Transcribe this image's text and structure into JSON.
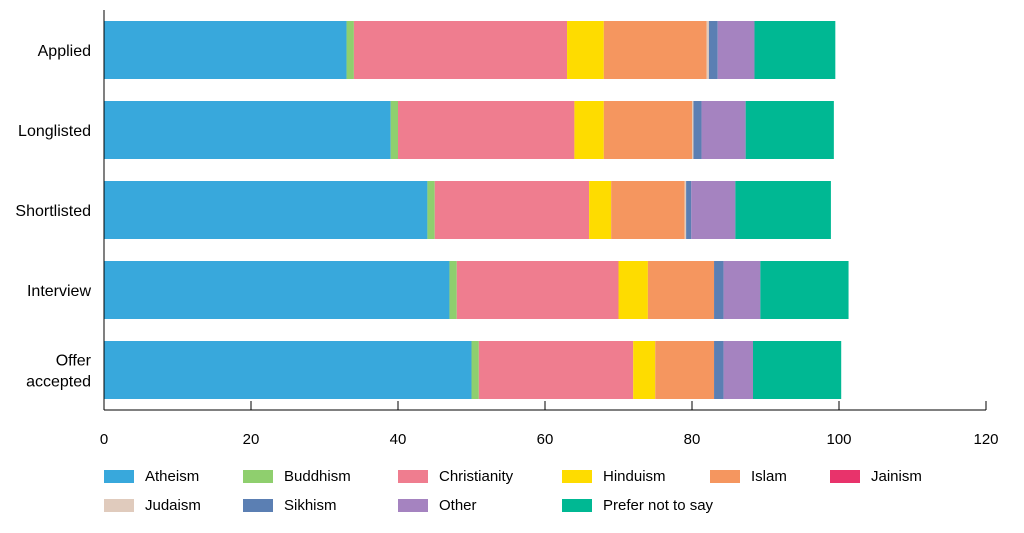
{
  "chart_data": {
    "type": "bar",
    "orientation": "horizontal",
    "stacked": true,
    "title": "",
    "xlabel": "",
    "ylabel": "",
    "xlim": [
      0,
      120
    ],
    "xticks": [
      "0",
      "20",
      "40",
      "60",
      "80",
      "100",
      "120"
    ],
    "categories": [
      "Applied",
      "Longlisted",
      "Shortlisted",
      "Interview",
      "Offer accepted"
    ],
    "category_lines": [
      [
        "Applied"
      ],
      [
        "Longlisted"
      ],
      [
        "Shortlisted"
      ],
      [
        "Interview"
      ],
      [
        "Offer",
        "accepted"
      ]
    ],
    "grid": false,
    "legend_position": "bottom",
    "series": [
      {
        "name": "Atheism",
        "color": "#38a8dc",
        "values": [
          33,
          39,
          44,
          47,
          50
        ]
      },
      {
        "name": "Buddhism",
        "color": "#8fcf6e",
        "values": [
          1,
          1,
          1,
          1,
          1
        ]
      },
      {
        "name": "Christianity",
        "color": "#ef7d8f",
        "values": [
          29,
          24,
          21,
          22,
          21
        ]
      },
      {
        "name": "Hinduism",
        "color": "#fedc00",
        "values": [
          5,
          4,
          3,
          4,
          3
        ]
      },
      {
        "name": "Islam",
        "color": "#f5965f",
        "values": [
          14,
          12,
          10,
          9,
          8
        ]
      },
      {
        "name": "Jainism",
        "color": "#e8336b",
        "values": [
          0,
          0,
          0,
          0,
          0
        ]
      },
      {
        "name": "Judaism",
        "color": "#e0cbbd",
        "values": [
          0.3,
          0.2,
          0.2,
          0,
          0
        ]
      },
      {
        "name": "Sikhism",
        "color": "#5b7fb3",
        "values": [
          1.2,
          1.1,
          0.7,
          1.3,
          1.3
        ]
      },
      {
        "name": "Other",
        "color": "#a583c0",
        "values": [
          5,
          6,
          6,
          5,
          4
        ]
      },
      {
        "name": "Prefer not to say",
        "color": "#00b893",
        "values": [
          11,
          12,
          13,
          12,
          12
        ]
      }
    ]
  }
}
